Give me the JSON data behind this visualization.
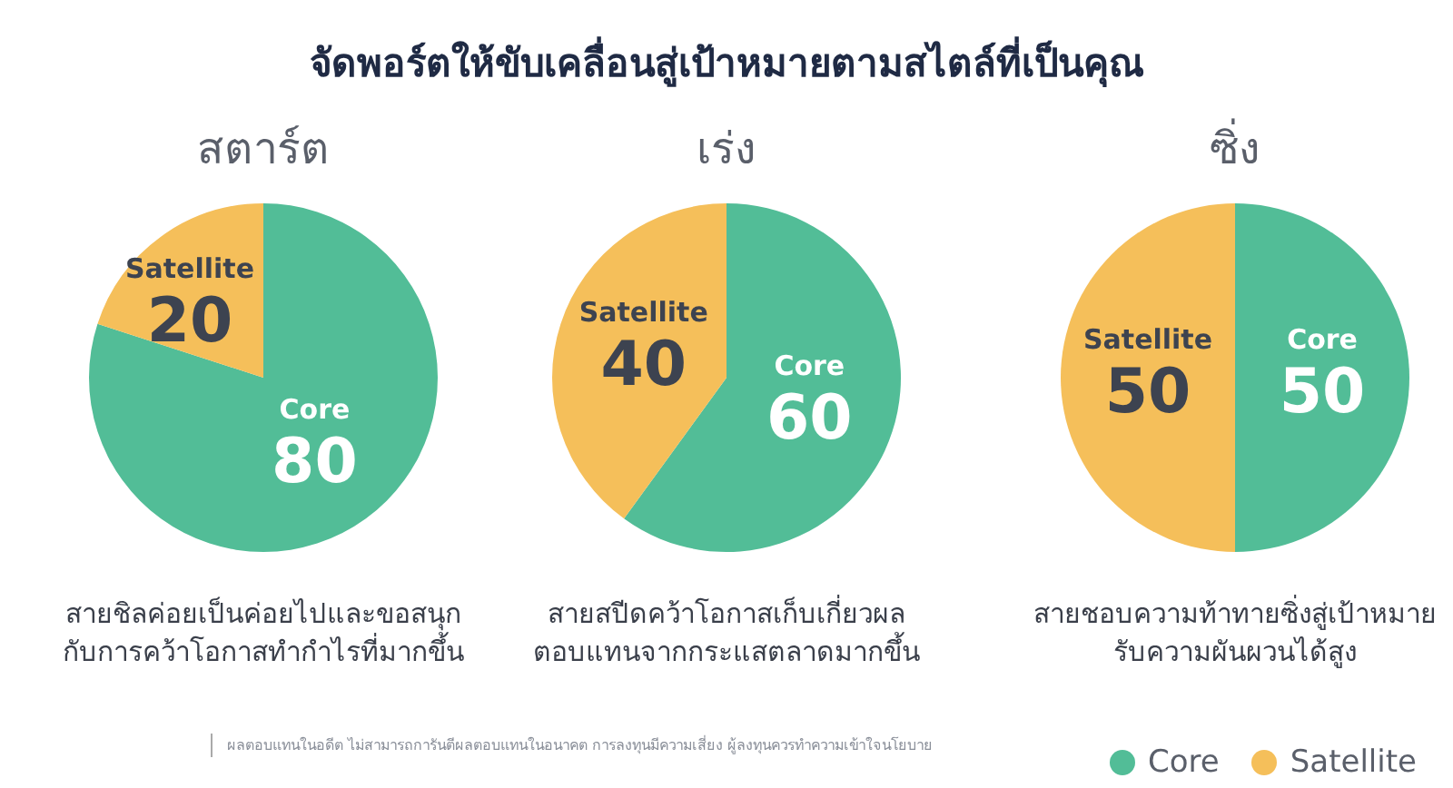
{
  "chart_data": [
    {
      "type": "other",
      "title": "จัดพอร์ตให้ขับเคลื่อนสู่เป้าหมายตามสไตล์ที่เป็นคุณ",
      "annotations": [
        "ผลตอบแทนในอดีต ไม่สามารถการันตีผลตอบแทนในอนาคต การลงทุนมีความเสี่ยง ผู้ลงทุนควรทำความเข้าใจนโยบาย"
      ]
    },
    {
      "type": "pie",
      "title": "สตาร์ต",
      "categories": [
        "Core",
        "Satellite"
      ],
      "values": [
        80,
        20
      ],
      "colors": [
        "#52bd97",
        "#f5bf5a"
      ],
      "data_labels": true,
      "annotations": [
        "สายชิลค่อยเป็นค่อยไปและขอสนุกกับการคว้าโอกาสทำกำไรที่มากขึ้น"
      ]
    },
    {
      "type": "pie",
      "title": "เร่ง",
      "categories": [
        "Core",
        "Satellite"
      ],
      "values": [
        60,
        40
      ],
      "colors": [
        "#52bd97",
        "#f5bf5a"
      ],
      "data_labels": true,
      "annotations": [
        "สายสปีดคว้าโอกาสเก็บเกี่ยวผลตอบแทนจากกระแสตลาดมากขึ้น"
      ]
    },
    {
      "type": "pie",
      "title": "ซิ่ง",
      "categories": [
        "Core",
        "Satellite"
      ],
      "values": [
        50,
        50
      ],
      "colors": [
        "#52bd97",
        "#f5bf5a"
      ],
      "data_labels": true,
      "legend": "bottom right",
      "annotations": [
        "สายชอบความท้าทายซิ่งสู่เป้าหมายรับความผันผวนได้สูง"
      ]
    }
  ]
}
